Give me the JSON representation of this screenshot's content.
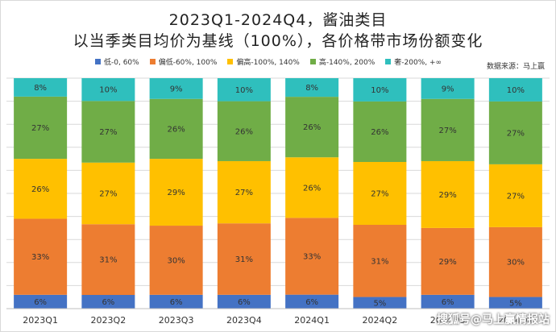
{
  "chart_data": {
    "type": "bar",
    "stacked": true,
    "percent": true,
    "title": "2023Q1-2024Q4，酱油类目",
    "subtitle": "以当季类目均价为基线（100%），各价格带市场份额变化",
    "source": "数据来源：马上赢",
    "categories": [
      "2023Q1",
      "2023Q2",
      "2023Q3",
      "2023Q4",
      "2024Q1",
      "2024Q2",
      "2024Q3",
      "2024Q4"
    ],
    "series": [
      {
        "name": "低-0, 60%",
        "color": "#4472c4",
        "values": [
          6,
          6,
          6,
          6,
          6,
          5,
          6,
          5
        ]
      },
      {
        "name": "偏低-60%, 100%",
        "color": "#ed7d31",
        "values": [
          33,
          31,
          30,
          31,
          33,
          31,
          29,
          30
        ]
      },
      {
        "name": "偏高-100%, 140%",
        "color": "#ffc000",
        "values": [
          26,
          27,
          29,
          27,
          26,
          27,
          29,
          27
        ]
      },
      {
        "name": "高-140%, 200%",
        "color": "#70ad47",
        "values": [
          27,
          27,
          26,
          26,
          26,
          26,
          27,
          27
        ]
      },
      {
        "name": "奢-200%, +∞",
        "color": "#2fbfbd",
        "values": [
          8,
          10,
          9,
          10,
          8,
          10,
          9,
          10
        ]
      }
    ],
    "ylim": [
      0,
      100
    ],
    "grid": true,
    "legend_position": "top"
  },
  "watermark": "搜狐号@马上赢情报站"
}
